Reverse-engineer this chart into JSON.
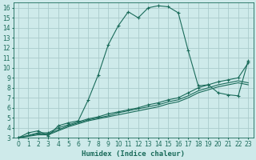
{
  "xlabel": "Humidex (Indice chaleur)",
  "bg_color": "#ceeaea",
  "grid_color": "#aacccc",
  "line_color": "#1a6b5a",
  "xlim": [
    -0.5,
    23.5
  ],
  "ylim": [
    3,
    16.5
  ],
  "xticks": [
    0,
    1,
    2,
    3,
    4,
    5,
    6,
    7,
    8,
    9,
    10,
    11,
    12,
    13,
    14,
    15,
    16,
    17,
    18,
    19,
    20,
    21,
    22,
    23
  ],
  "yticks": [
    3,
    4,
    5,
    6,
    7,
    8,
    9,
    10,
    11,
    12,
    13,
    14,
    15,
    16
  ],
  "lines": [
    {
      "x": [
        0,
        1,
        2,
        3,
        4,
        5,
        6,
        7,
        8,
        9,
        10,
        11,
        12,
        13,
        14,
        15,
        16,
        17,
        18,
        19,
        20,
        21,
        22,
        23
      ],
      "y": [
        3.0,
        3.5,
        3.7,
        3.2,
        4.2,
        4.5,
        4.7,
        6.8,
        9.3,
        12.3,
        14.2,
        15.6,
        15.0,
        16.0,
        16.2,
        16.1,
        15.5,
        11.7,
        8.2,
        8.3,
        7.5,
        7.3,
        7.2,
        10.7
      ],
      "marker": true
    },
    {
      "x": [
        0,
        2,
        3,
        4,
        5,
        6,
        7,
        8,
        9,
        10,
        11,
        12,
        13,
        14,
        15,
        16,
        17,
        18,
        19,
        20,
        21,
        22,
        23
      ],
      "y": [
        3.0,
        3.5,
        3.5,
        4.0,
        4.3,
        4.6,
        4.9,
        5.1,
        5.4,
        5.6,
        5.8,
        6.0,
        6.3,
        6.5,
        6.8,
        7.0,
        7.5,
        8.0,
        8.3,
        8.6,
        8.8,
        9.0,
        10.5
      ],
      "marker": true
    },
    {
      "x": [
        0,
        2,
        3,
        4,
        5,
        6,
        7,
        8,
        9,
        10,
        11,
        12,
        13,
        14,
        15,
        16,
        17,
        18,
        19,
        20,
        21,
        22,
        23
      ],
      "y": [
        3.0,
        3.4,
        3.4,
        3.8,
        4.2,
        4.5,
        4.8,
        5.0,
        5.2,
        5.5,
        5.7,
        5.9,
        6.1,
        6.3,
        6.6,
        6.8,
        7.2,
        7.7,
        8.0,
        8.3,
        8.5,
        8.7,
        8.5
      ],
      "marker": false
    },
    {
      "x": [
        0,
        2,
        3,
        4,
        5,
        6,
        7,
        8,
        9,
        10,
        11,
        12,
        13,
        14,
        15,
        16,
        17,
        18,
        19,
        20,
        21,
        22,
        23
      ],
      "y": [
        3.0,
        3.3,
        3.3,
        3.7,
        4.1,
        4.4,
        4.7,
        4.9,
        5.1,
        5.3,
        5.5,
        5.7,
        5.9,
        6.1,
        6.4,
        6.6,
        7.0,
        7.5,
        7.8,
        8.1,
        8.3,
        8.5,
        8.3
      ],
      "marker": false
    }
  ]
}
